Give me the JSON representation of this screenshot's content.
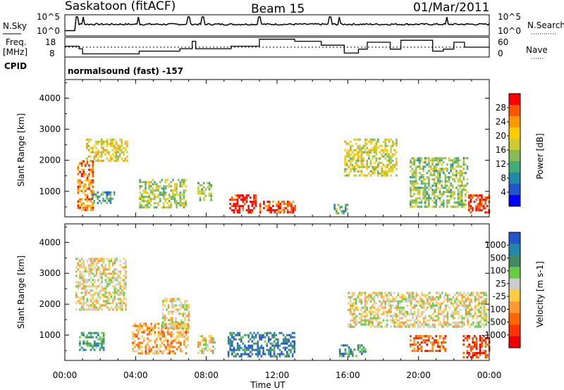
{
  "header": {
    "station": "Saskatoon (fitACF)",
    "beam": "Beam 15",
    "date": "01/Mar/2011"
  },
  "nsky_panel": {
    "left_label": "N.Sky",
    "left_ticks": [
      "10^5",
      "10^0"
    ],
    "right_label": "N.Search",
    "right_ticks": [
      "10^5",
      "10^0"
    ]
  },
  "freq_panel": {
    "left_label_line1": "Freq.",
    "left_label_line2": "[MHz]",
    "left_ticks": [
      "18",
      "8"
    ],
    "right_label": "Nave",
    "right_ticks": [
      "60",
      "0"
    ],
    "cpid_label": "CPID"
  },
  "mode_label": "normalsound (fast) -157",
  "chart_data": [
    {
      "type": "heatmap",
      "name": "power",
      "ylabel": "Slant Range [km]",
      "yticks": [
        "4000",
        "3000",
        "2000",
        "1000"
      ],
      "ylim": [
        180,
        4600
      ],
      "xlim_hours": [
        0,
        24
      ],
      "colorbar_label": "Power [dB]",
      "colorbar_ticks": [
        "28",
        "24",
        "20",
        "16",
        "12",
        "8",
        "4"
      ],
      "colorbar_colors": [
        "#ff0000",
        "#ff5500",
        "#ff9900",
        "#ffcc00",
        "#cccc33",
        "#88bb55",
        "#44aa77",
        "#2288aa",
        "#2255cc",
        "#0000ff"
      ],
      "regions": [
        {
          "t0": 0.7,
          "t1": 1.6,
          "r0": 400,
          "r1": 2000,
          "level": 0.8
        },
        {
          "t0": 1.2,
          "t1": 3.5,
          "r0": 2000,
          "r1": 2700,
          "level": 0.6
        },
        {
          "t0": 1.5,
          "t1": 2.8,
          "r0": 600,
          "r1": 1000,
          "level": 0.35
        },
        {
          "t0": 4.2,
          "t1": 6.8,
          "r0": 500,
          "r1": 1400,
          "level": 0.5
        },
        {
          "t0": 7.5,
          "t1": 8.3,
          "r0": 700,
          "r1": 1300,
          "level": 0.45
        },
        {
          "t0": 9.3,
          "t1": 10.8,
          "r0": 300,
          "r1": 900,
          "level": 0.95
        },
        {
          "t0": 11.0,
          "t1": 13.0,
          "r0": 300,
          "r1": 700,
          "level": 0.9
        },
        {
          "t0": 15.2,
          "t1": 16.0,
          "r0": 300,
          "r1": 600,
          "level": 0.4
        },
        {
          "t0": 15.8,
          "t1": 18.8,
          "r0": 1500,
          "r1": 2700,
          "level": 0.55
        },
        {
          "t0": 19.5,
          "t1": 22.8,
          "r0": 500,
          "r1": 2100,
          "level": 0.45
        },
        {
          "t0": 22.8,
          "t1": 24.0,
          "r0": 300,
          "r1": 900,
          "level": 0.92
        }
      ]
    },
    {
      "type": "heatmap",
      "name": "velocity",
      "ylabel": "Slant Range [km]",
      "yticks": [
        "4000",
        "3000",
        "2000",
        "1000"
      ],
      "ylim": [
        180,
        4600
      ],
      "xlim_hours": [
        0,
        24
      ],
      "xticks": [
        "00:00",
        "04:00",
        "08:00",
        "12:00",
        "16:00",
        "20:00",
        "00:00"
      ],
      "xlabel": "Time UT",
      "colorbar_label": "Velocity [m s-1]",
      "colorbar_ticks": [
        "1000",
        "500",
        "100",
        "25",
        "-25",
        "-100",
        "-500",
        "-1000"
      ],
      "colorbar_colors": [
        "#2255cc",
        "#2288aa",
        "#448866",
        "#66cc44",
        "#cccccc",
        "#ffcc44",
        "#ff9933",
        "#ff6600",
        "#ff3300",
        "#ee0000"
      ],
      "regions": [
        {
          "t0": 0.6,
          "t1": 3.5,
          "r0": 1800,
          "r1": 3500,
          "level": 0.5
        },
        {
          "t0": 0.8,
          "t1": 2.2,
          "r0": 500,
          "r1": 1100,
          "level": 0.75
        },
        {
          "t0": 3.8,
          "t1": 7.0,
          "r0": 400,
          "r1": 1400,
          "level": 0.35
        },
        {
          "t0": 5.5,
          "t1": 7.0,
          "r0": 1200,
          "r1": 2200,
          "level": 0.5
        },
        {
          "t0": 7.5,
          "t1": 8.5,
          "r0": 400,
          "r1": 1000,
          "level": 0.5
        },
        {
          "t0": 9.2,
          "t1": 13.0,
          "r0": 300,
          "r1": 1100,
          "level": 0.85
        },
        {
          "t0": 15.5,
          "t1": 17.0,
          "r0": 300,
          "r1": 700,
          "level": 0.8
        },
        {
          "t0": 16.0,
          "t1": 23.8,
          "r0": 1300,
          "r1": 2400,
          "level": 0.5
        },
        {
          "t0": 19.5,
          "t1": 21.5,
          "r0": 500,
          "r1": 1000,
          "level": 0.25
        },
        {
          "t0": 22.5,
          "t1": 24.0,
          "r0": 300,
          "r1": 1000,
          "level": 0.15
        }
      ]
    }
  ],
  "nsky_series": {
    "base_level": 0.55,
    "jumps": [
      0.7,
      1.05,
      4.15,
      7.0,
      7.8,
      11.0,
      15.0,
      15.5,
      21.6
    ]
  },
  "freq_series": {
    "steps": [
      {
        "t": 0.0,
        "f": 13.5
      },
      {
        "t": 0.8,
        "f": 12.2
      },
      {
        "t": 1.0,
        "f": 9.6
      },
      {
        "t": 4.2,
        "f": 11.0
      },
      {
        "t": 6.5,
        "f": 12.2
      },
      {
        "t": 7.2,
        "f": 16.0
      },
      {
        "t": 7.4,
        "f": 12.2
      },
      {
        "t": 9.4,
        "f": 13.5
      },
      {
        "t": 11.0,
        "f": 17.0
      },
      {
        "t": 13.0,
        "f": 16.0
      },
      {
        "t": 14.5,
        "f": 14.0
      },
      {
        "t": 15.8,
        "f": 10.0
      },
      {
        "t": 16.6,
        "f": 12.0
      },
      {
        "t": 17.1,
        "f": 15.5
      },
      {
        "t": 18.4,
        "f": 12.0
      },
      {
        "t": 19.0,
        "f": 16.5
      },
      {
        "t": 20.8,
        "f": 11.0
      },
      {
        "t": 21.4,
        "f": 12.0
      },
      {
        "t": 22.0,
        "f": 15.5
      },
      {
        "t": 22.6,
        "f": 13.0
      },
      {
        "t": 24.0,
        "f": 13.0
      }
    ],
    "nave_level": 13.0
  }
}
